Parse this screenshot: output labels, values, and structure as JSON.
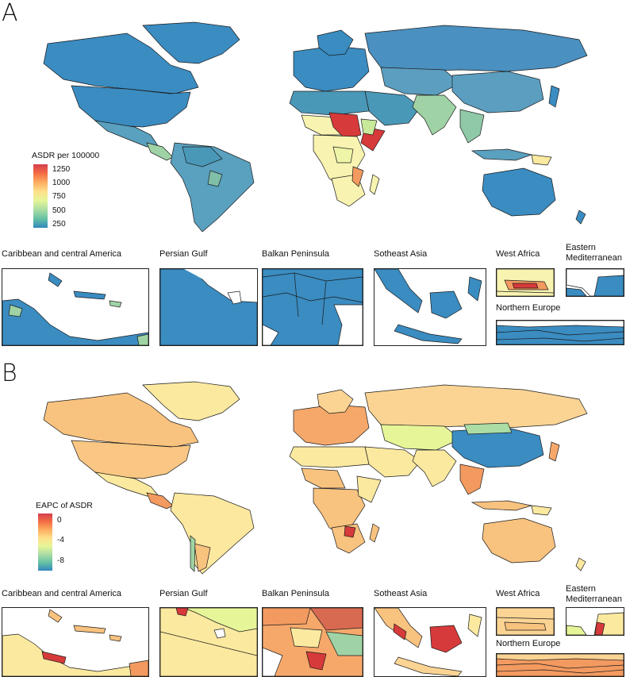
{
  "panels": [
    {
      "letter": "A",
      "legend": {
        "title": "ASDR per 100000",
        "ticks": [
          "1250",
          "1000",
          "750",
          "500",
          "250"
        ],
        "gradient": [
          "#d53e4f",
          "#f46d43",
          "#fdae61",
          "#fee08b",
          "#e6f598",
          "#abdda4",
          "#66c2a5",
          "#3288bd"
        ]
      },
      "insets": {
        "caribbean": "Caribbean and central America",
        "persian_gulf": "Persian Gulf",
        "balkan": "Balkan Peninsula",
        "southeast_asia": "Sotheast Asia",
        "west_africa": "West Africa",
        "eastern_med": "Eastern Mediterranean",
        "northern_europe": "Northern Europe"
      },
      "colors": {
        "base": "#3a8cc1",
        "north_america": "#3a8cc1",
        "south_america": "#5aa0bf",
        "russia": "#4a90c0",
        "china": "#5b9ec0",
        "australia": "#3a8cc1",
        "sahel": "#d73a3a",
        "africa_mid": "#f8f3b0",
        "africa_green": "#c8e89a",
        "india": "#9fd3a5",
        "europe": "#3a8cc1"
      }
    },
    {
      "letter": "B",
      "legend": {
        "title": "EAPC of ASDR",
        "ticks": [
          "0",
          "-4",
          "-8"
        ],
        "gradient": [
          "#d53e4f",
          "#f46d43",
          "#fdae61",
          "#fee08b",
          "#e6f598",
          "#abdda4",
          "#66c2a5",
          "#3288bd"
        ]
      },
      "insets": {
        "caribbean": "Caribbean and central America",
        "persian_gulf": "Persian Gulf",
        "balkan": "Balkan Peninsula",
        "southeast_asia": "Sotheast Asia",
        "west_africa": "West Africa",
        "eastern_med": "Eastern Mediterranean",
        "northern_europe": "Northern Europe"
      },
      "colors": {
        "base": "#fbe9a0",
        "north_america": "#f9c783",
        "south_america": "#fde8a0",
        "russia": "#fbd494",
        "china": "#3a8cc1",
        "australia": "#f8c27f",
        "africa": "#fbd494",
        "europe": "#f6a86b"
      }
    }
  ]
}
